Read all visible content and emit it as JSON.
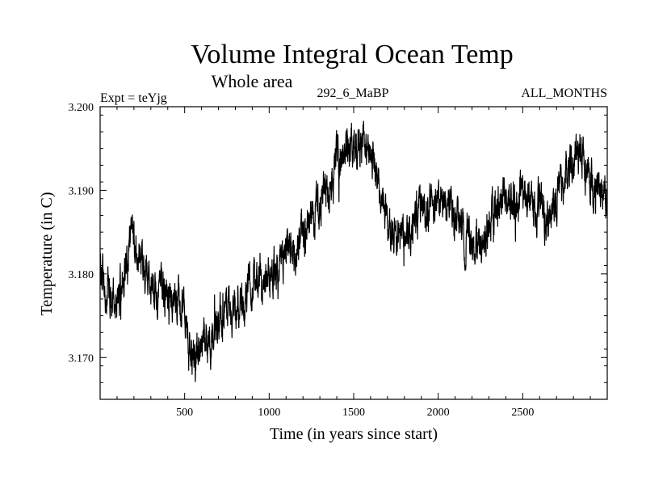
{
  "chart_data": {
    "type": "line",
    "title": "Volume Integral Ocean Temp",
    "subtitle": "Whole area",
    "header_left": "Expt = teYjg",
    "header_center": "292_6_MaBP",
    "header_right": "ALL_MONTHS",
    "xlabel": "Time (in years since start)",
    "ylabel": "Temperature (in C)",
    "xlim": [
      0,
      3000
    ],
    "ylim": [
      3.165,
      3.2
    ],
    "x_ticks": [
      500,
      1000,
      1500,
      2000,
      2500
    ],
    "x_tick_labels": [
      "500",
      "1000",
      "1500",
      "2000",
      "2500"
    ],
    "y_ticks": [
      3.17,
      3.18,
      3.19,
      3.2
    ],
    "y_tick_labels": [
      "3.170",
      "3.180",
      "3.190",
      "3.200"
    ],
    "grid": false,
    "series": [
      {
        "name": "Volume integral ocean temperature",
        "color": "#000000",
        "x": [
          0,
          50,
          100,
          150,
          180,
          200,
          250,
          300,
          350,
          400,
          450,
          500,
          530,
          560,
          600,
          650,
          700,
          750,
          800,
          850,
          900,
          950,
          1000,
          1050,
          1100,
          1150,
          1200,
          1250,
          1300,
          1350,
          1400,
          1450,
          1500,
          1550,
          1600,
          1650,
          1700,
          1720,
          1750,
          1800,
          1850,
          1900,
          1950,
          2000,
          2050,
          2100,
          2150,
          2200,
          2250,
          2270,
          2300,
          2350,
          2400,
          2450,
          2500,
          2550,
          2600,
          2650,
          2700,
          2750,
          2800,
          2850,
          2900,
          2950,
          3000
        ],
        "values": [
          3.1805,
          3.178,
          3.1765,
          3.1805,
          3.1845,
          3.1825,
          3.1815,
          3.179,
          3.178,
          3.1775,
          3.177,
          3.1765,
          3.1715,
          3.1705,
          3.172,
          3.1725,
          3.1745,
          3.1755,
          3.1765,
          3.1765,
          3.178,
          3.179,
          3.18,
          3.181,
          3.182,
          3.1835,
          3.185,
          3.187,
          3.189,
          3.19,
          3.193,
          3.195,
          3.1945,
          3.195,
          3.1945,
          3.19,
          3.186,
          3.184,
          3.185,
          3.1855,
          3.186,
          3.188,
          3.1875,
          3.188,
          3.189,
          3.1865,
          3.1855,
          3.184,
          3.1825,
          3.182,
          3.1865,
          3.188,
          3.1895,
          3.189,
          3.1895,
          3.1885,
          3.188,
          3.186,
          3.189,
          3.1915,
          3.193,
          3.1945,
          3.191,
          3.1905,
          3.189
        ]
      }
    ]
  }
}
